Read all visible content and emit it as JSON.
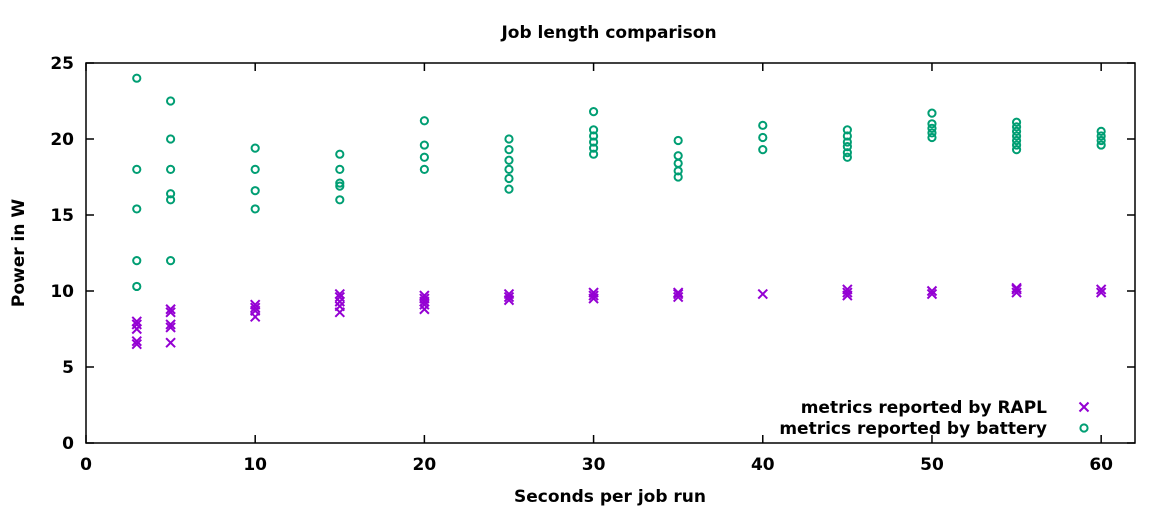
{
  "chart_data": {
    "type": "scatter",
    "title": "Job length comparison",
    "xlabel": "Seconds per job run",
    "ylabel": "Power in W",
    "xlim": [
      0,
      62
    ],
    "ylim": [
      0,
      25
    ],
    "xticks": [
      0,
      10,
      20,
      30,
      40,
      50,
      60
    ],
    "yticks": [
      0,
      5,
      10,
      15,
      20,
      25
    ],
    "grid": false,
    "legend_position": "bottom-right",
    "series": [
      {
        "name": "metrics reported by RAPL",
        "marker": "x",
        "color": "#9400d3",
        "points": [
          [
            3,
            6.5
          ],
          [
            3,
            6.7
          ],
          [
            3,
            7.5
          ],
          [
            3,
            7.8
          ],
          [
            3,
            8.0
          ],
          [
            5,
            6.6
          ],
          [
            5,
            7.6
          ],
          [
            5,
            7.8
          ],
          [
            5,
            8.6
          ],
          [
            5,
            8.8
          ],
          [
            10,
            8.3
          ],
          [
            10,
            8.7
          ],
          [
            10,
            8.9
          ],
          [
            10,
            9.1
          ],
          [
            15,
            8.6
          ],
          [
            15,
            9.0
          ],
          [
            15,
            9.3
          ],
          [
            15,
            9.6
          ],
          [
            15,
            9.8
          ],
          [
            20,
            8.8
          ],
          [
            20,
            9.1
          ],
          [
            20,
            9.3
          ],
          [
            20,
            9.5
          ],
          [
            20,
            9.7
          ],
          [
            25,
            9.4
          ],
          [
            25,
            9.6
          ],
          [
            25,
            9.8
          ],
          [
            30,
            9.5
          ],
          [
            30,
            9.7
          ],
          [
            30,
            9.9
          ],
          [
            35,
            9.6
          ],
          [
            35,
            9.8
          ],
          [
            35,
            9.9
          ],
          [
            40,
            9.8
          ],
          [
            45,
            9.7
          ],
          [
            45,
            9.9
          ],
          [
            45,
            10.1
          ],
          [
            50,
            9.8
          ],
          [
            50,
            10.0
          ],
          [
            55,
            9.9
          ],
          [
            55,
            10.1
          ],
          [
            55,
            10.2
          ],
          [
            60,
            9.9
          ],
          [
            60,
            10.1
          ]
        ]
      },
      {
        "name": "metrics reported by battery",
        "marker": "o",
        "color": "#009e73",
        "points": [
          [
            3,
            24.0
          ],
          [
            3,
            18.0
          ],
          [
            3,
            15.4
          ],
          [
            3,
            12.0
          ],
          [
            3,
            10.3
          ],
          [
            5,
            22.5
          ],
          [
            5,
            20.0
          ],
          [
            5,
            18.0
          ],
          [
            5,
            16.4
          ],
          [
            5,
            16.0
          ],
          [
            5,
            12.0
          ],
          [
            10,
            19.4
          ],
          [
            10,
            18.0
          ],
          [
            10,
            16.6
          ],
          [
            10,
            15.4
          ],
          [
            15,
            19.0
          ],
          [
            15,
            18.0
          ],
          [
            15,
            17.1
          ],
          [
            15,
            16.9
          ],
          [
            15,
            16.0
          ],
          [
            20,
            21.2
          ],
          [
            20,
            19.6
          ],
          [
            20,
            18.8
          ],
          [
            20,
            18.0
          ],
          [
            25,
            20.0
          ],
          [
            25,
            19.3
          ],
          [
            25,
            18.6
          ],
          [
            25,
            18.0
          ],
          [
            25,
            17.4
          ],
          [
            25,
            16.7
          ],
          [
            30,
            21.8
          ],
          [
            30,
            20.6
          ],
          [
            30,
            20.2
          ],
          [
            30,
            19.8
          ],
          [
            30,
            19.4
          ],
          [
            30,
            19.0
          ],
          [
            35,
            19.9
          ],
          [
            35,
            18.9
          ],
          [
            35,
            18.4
          ],
          [
            35,
            17.9
          ],
          [
            35,
            17.5
          ],
          [
            40,
            20.9
          ],
          [
            40,
            20.1
          ],
          [
            40,
            19.3
          ],
          [
            45,
            20.6
          ],
          [
            45,
            20.2
          ],
          [
            45,
            19.8
          ],
          [
            45,
            19.5
          ],
          [
            45,
            19.1
          ],
          [
            45,
            18.8
          ],
          [
            50,
            21.7
          ],
          [
            50,
            21.0
          ],
          [
            50,
            20.7
          ],
          [
            50,
            20.4
          ],
          [
            50,
            20.1
          ],
          [
            55,
            21.1
          ],
          [
            55,
            20.8
          ],
          [
            55,
            20.5
          ],
          [
            55,
            20.2
          ],
          [
            55,
            19.9
          ],
          [
            55,
            19.6
          ],
          [
            55,
            19.3
          ],
          [
            60,
            20.5
          ],
          [
            60,
            20.2
          ],
          [
            60,
            19.9
          ],
          [
            60,
            19.6
          ]
        ]
      }
    ]
  }
}
